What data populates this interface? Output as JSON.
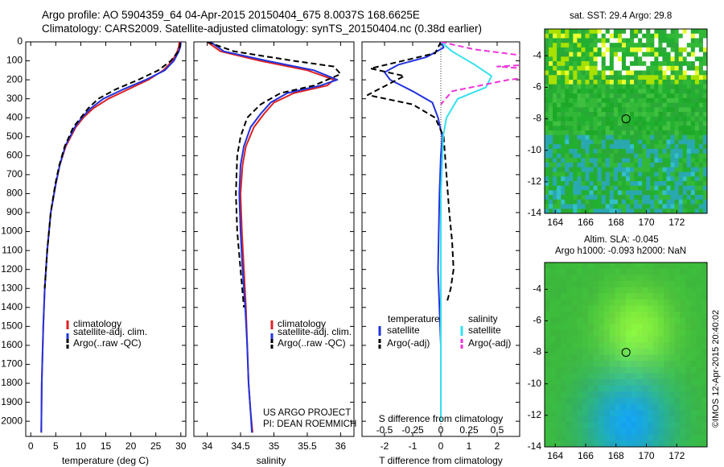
{
  "header": {
    "line1": "Argo profile: AO 5904359_64 04-Apr-2015 20150404_675 8.0037S 168.6625E",
    "line2": "Climatology: CARS2009. Satellite-adjusted climatology: synTS_20150404.nc (0.38d earlier)"
  },
  "colors": {
    "climatology": "#dd2222",
    "satellite": "#2233dd",
    "argo": "#000000",
    "sal_satellite": "#33e0ee",
    "sal_argo": "#ee33dd"
  },
  "depth_ticks": [
    "0",
    "100",
    "200",
    "300",
    "400",
    "500",
    "600",
    "700",
    "800",
    "900",
    "1000",
    "1100",
    "1200",
    "1300",
    "1400",
    "1500",
    "1600",
    "1700",
    "1800",
    "1900",
    "2000"
  ],
  "chart_data": [
    {
      "type": "line",
      "xlabel": "temperature (deg C)",
      "xlim": [
        -1,
        31
      ],
      "xticks": [
        "0",
        "5",
        "10",
        "15",
        "20",
        "25",
        "30"
      ],
      "ylim": [
        2080,
        0
      ],
      "legend": [
        "climatology",
        "satellite-adj. clim.",
        "Argo(..raw -QC)"
      ],
      "series": [
        {
          "name": "climatology",
          "color": "#dd2222",
          "style": "solid",
          "x": [
            29.7,
            29.6,
            29.3,
            28.3,
            26.5,
            23.5,
            19.5,
            15.5,
            12.5,
            10.5,
            9.0,
            7.0,
            5.8,
            5.0,
            4.0,
            3.3,
            2.8,
            2.5,
            2.2,
            2.1
          ],
          "y": [
            0,
            25,
            50,
            100,
            150,
            200,
            250,
            300,
            350,
            400,
            450,
            550,
            650,
            750,
            900,
            1100,
            1300,
            1500,
            1800,
            2060
          ]
        },
        {
          "name": "satellite-adj. clim.",
          "color": "#2233dd",
          "style": "solid",
          "x": [
            30.0,
            29.9,
            29.6,
            28.6,
            26.8,
            23.0,
            18.5,
            14.5,
            12.0,
            10.2,
            8.8,
            6.9,
            5.8,
            5.0,
            4.0,
            3.3,
            2.8,
            2.5,
            2.2,
            2.1
          ],
          "y": [
            0,
            25,
            50,
            100,
            150,
            200,
            250,
            300,
            350,
            400,
            450,
            550,
            650,
            750,
            900,
            1100,
            1300,
            1500,
            1800,
            2060
          ]
        },
        {
          "name": "Argo(..raw -QC)",
          "color": "#000000",
          "style": "dashed",
          "x": [
            29.9,
            29.8,
            29.5,
            28.0,
            25.5,
            21.5,
            17.0,
            13.5,
            11.5,
            10.0,
            8.5,
            6.8,
            5.7,
            4.9,
            4.0,
            3.3,
            2.8
          ],
          "y": [
            5,
            25,
            50,
            100,
            150,
            200,
            250,
            300,
            350,
            400,
            450,
            550,
            650,
            750,
            900,
            1100,
            1300
          ]
        }
      ]
    },
    {
      "type": "line",
      "xlabel": "salinity",
      "xlim": [
        33.8,
        36.2
      ],
      "xticks": [
        "34",
        "34.5",
        "35",
        "35.5",
        "36"
      ],
      "ylim": [
        2080,
        0
      ],
      "legend": [
        "climatology",
        "satellite-adj. clim.",
        "Argo(..raw -QC)"
      ],
      "annotation": [
        "US ARGO PROJECT",
        "PI: DEAN ROEMMICH"
      ],
      "series": [
        {
          "name": "climatology",
          "color": "#dd2222",
          "style": "solid",
          "x": [
            34.0,
            34.2,
            34.8,
            35.5,
            35.9,
            35.8,
            35.3,
            35.0,
            34.85,
            34.7,
            34.58,
            34.53,
            34.5,
            34.52,
            34.55,
            34.58,
            34.6,
            34.62,
            34.65,
            34.68
          ],
          "y": [
            0,
            50,
            100,
            150,
            200,
            230,
            270,
            320,
            380,
            450,
            550,
            650,
            800,
            1000,
            1200,
            1400,
            1600,
            1800,
            1950,
            2060
          ]
        },
        {
          "name": "satellite-adj. clim.",
          "color": "#2233dd",
          "style": "solid",
          "x": [
            34.05,
            34.25,
            34.9,
            35.6,
            35.95,
            35.7,
            35.2,
            34.95,
            34.8,
            34.65,
            34.55,
            34.5,
            34.48,
            34.5,
            34.53,
            34.57,
            34.6,
            34.62,
            34.65,
            34.67
          ],
          "y": [
            0,
            50,
            100,
            150,
            200,
            230,
            270,
            320,
            380,
            450,
            550,
            650,
            800,
            1000,
            1200,
            1400,
            1600,
            1800,
            1950,
            2060
          ]
        },
        {
          "name": "Argo(..raw -QC)",
          "color": "#000000",
          "style": "dashed",
          "x": [
            34.0,
            34.4,
            35.3,
            35.9,
            36.0,
            35.6,
            35.1,
            34.8,
            34.6,
            34.5,
            34.45,
            34.43,
            34.45,
            34.5,
            34.55
          ],
          "y": [
            0,
            50,
            100,
            130,
            170,
            230,
            270,
            330,
            400,
            500,
            600,
            800,
            1000,
            1200,
            1400
          ]
        }
      ]
    },
    {
      "type": "line",
      "xlabel": "T difference from climatology",
      "xlabel2": "S difference from climatology",
      "xlim": [
        -2.8,
        2.8
      ],
      "xticks": [
        "-2",
        "-1",
        "0",
        "1",
        "2"
      ],
      "xticks_top": [
        "-0.5",
        "-0.25",
        "0",
        "0.25",
        "0.5"
      ],
      "ylim": [
        2080,
        0
      ],
      "legend_groups": [
        {
          "title": "temperature",
          "items": [
            "satellite",
            "Argo(-adj)"
          ]
        },
        {
          "title": "salinity",
          "items": [
            "satellite",
            "Argo(-adj)"
          ]
        }
      ],
      "series": [
        {
          "name": "satellite",
          "group": "temperature",
          "color": "#2233dd",
          "style": "solid",
          "x": [
            0,
            0.1,
            -0.5,
            -1.5,
            -2.0,
            -1.8,
            -1.0,
            -0.3,
            -0.1,
            0.05,
            0,
            -0.05,
            -0.1,
            0,
            0
          ],
          "y": [
            0,
            30,
            80,
            120,
            160,
            200,
            260,
            320,
            400,
            500,
            600,
            800,
            1200,
            1600,
            2000
          ]
        },
        {
          "name": "Argo(-adj)",
          "group": "temperature",
          "color": "#000000",
          "style": "dashed",
          "x": [
            0,
            -0.2,
            -2.5,
            -1.3,
            -2.6,
            -1.0,
            -0.2,
            0.1,
            0.2,
            0.3,
            0.4,
            0.45,
            0.35,
            0.2
          ],
          "y": [
            0,
            60,
            140,
            180,
            280,
            330,
            400,
            500,
            700,
            900,
            1050,
            1200,
            1300,
            1380
          ]
        },
        {
          "name": "satellite",
          "group": "salinity",
          "color": "#33e0ee",
          "style": "solid",
          "x": [
            0,
            0.1,
            0.3,
            0.45,
            0.4,
            0.15,
            0.05,
            0.02,
            0,
            0,
            0
          ],
          "y": [
            0,
            50,
            120,
            180,
            240,
            300,
            400,
            500,
            800,
            1200,
            2000
          ]
        },
        {
          "name": "Argo(-adj)",
          "group": "salinity",
          "color": "#ee33dd",
          "style": "dashed",
          "x": [
            0,
            0.3,
            0.7,
            1.4,
            0.5,
            1.2,
            0.6,
            0.1,
            0
          ],
          "y": [
            0,
            40,
            70,
            100,
            130,
            160,
            200,
            260,
            330
          ]
        }
      ]
    },
    {
      "type": "heatmap",
      "title": "sat. SST: 29.4 Argo: 29.8",
      "xticks": [
        "164",
        "166",
        "168",
        "170",
        "172"
      ],
      "yticks": [
        "-4",
        "-6",
        "-8",
        "-10",
        "-12",
        "-14"
      ],
      "xlim": [
        163.3,
        174.0
      ],
      "ylim": [
        -14.0,
        -2.3
      ],
      "marker": {
        "lon": 168.66,
        "lat": -8.0
      }
    },
    {
      "type": "heatmap",
      "title": "Altim. SLA: -0.045",
      "subtitle": "Argo h1000: -0.093 h2000: NaN",
      "xticks": [
        "164",
        "166",
        "168",
        "170",
        "172"
      ],
      "yticks": [
        "-4",
        "-6",
        "-8",
        "-10",
        "-12",
        "-14"
      ],
      "xlim": [
        163.3,
        174.0
      ],
      "ylim": [
        -14.0,
        -2.3
      ],
      "marker": {
        "lon": 168.66,
        "lat": -8.0
      },
      "side_label": "©IMOS 12-Apr-2015 20:40:02"
    }
  ]
}
